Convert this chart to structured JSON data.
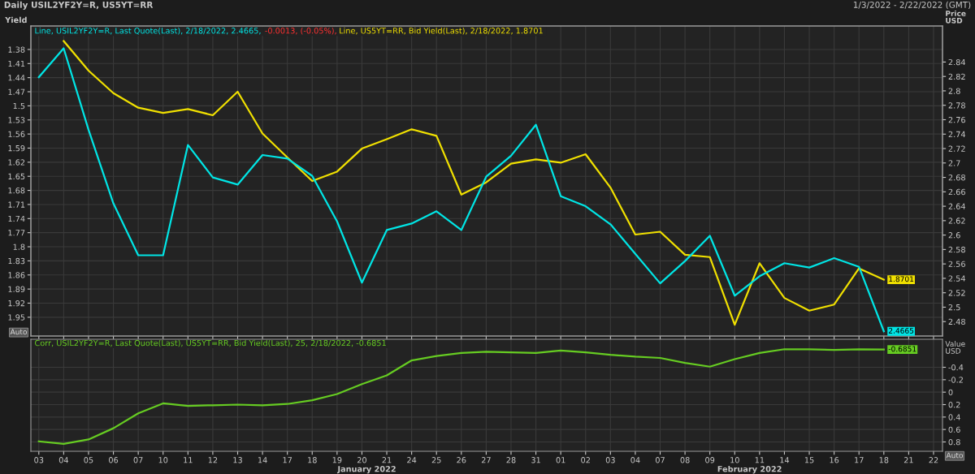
{
  "chart_data": [
    {
      "type": "line",
      "title": "Daily USIL2YF2Y=R, US5YT=RR",
      "subtitle": "1/3/2022 - 2/22/2022 (GMT)",
      "ylabel": "Yield",
      "y2label": "Price USD",
      "categories": [
        "03",
        "04",
        "05",
        "06",
        "07",
        "10",
        "11",
        "12",
        "13",
        "14",
        "17",
        "18",
        "19",
        "20",
        "21",
        "24",
        "25",
        "26",
        "27",
        "28",
        "31",
        "01",
        "02",
        "03",
        "04",
        "07",
        "08",
        "09",
        "10",
        "11",
        "14",
        "15",
        "16",
        "17",
        "18",
        "21",
        "22"
      ],
      "ylim": [
        1.99,
        1.33
      ],
      "yticks": [
        1.38,
        1.41,
        1.44,
        1.47,
        1.5,
        1.53,
        1.56,
        1.59,
        1.62,
        1.65,
        1.68,
        1.71,
        1.74,
        1.77,
        1.8,
        1.83,
        1.86,
        1.89,
        1.92,
        1.95
      ],
      "y2lim": [
        2.46,
        2.89
      ],
      "y2ticks": [
        2.48,
        2.5,
        2.52,
        2.54,
        2.56,
        2.58,
        2.6,
        2.62,
        2.64,
        2.66,
        2.68,
        2.7,
        2.72,
        2.74,
        2.76,
        2.78,
        2.8,
        2.82,
        2.84
      ],
      "grid": true,
      "legend": "top left",
      "tick_labels": "y",
      "annotations": [
        "-0.0013, (-0.05%),",
        "Auto"
      ],
      "series": [
        {
          "name": "Line, USIL2YF2Y=R, Last Quote(Last), 2/18/2022, 2.4665,",
          "color": "#00e5e5",
          "axis": "y2",
          "values": [
            2.819,
            2.859,
            2.746,
            2.644,
            2.572,
            2.572,
            2.725,
            2.68,
            2.67,
            2.711,
            2.706,
            2.682,
            2.619,
            2.534,
            2.607,
            2.616,
            2.633,
            2.607,
            2.681,
            2.71,
            2.753,
            2.654,
            2.64,
            2.615,
            2.574,
            2.533,
            2.564,
            2.599,
            2.516,
            2.543,
            2.561,
            2.555,
            2.568,
            2.556,
            2.4665,
            null,
            null
          ],
          "value_labels": [
            null,
            null,
            null,
            null,
            null,
            null,
            null,
            null,
            null,
            null,
            null,
            null,
            null,
            null,
            null,
            null,
            null,
            null,
            null,
            null,
            null,
            null,
            null,
            null,
            null,
            null,
            null,
            null,
            null,
            null,
            null,
            null,
            null,
            null,
            "2.4665",
            null,
            null
          ]
        },
        {
          "name": "Line, US5YT=RR, Bid Yield(Last), 2/18/2022, 1.8701",
          "color": "#f0e000",
          "values": [
            null,
            1.362,
            1.425,
            1.473,
            1.504,
            1.515,
            1.507,
            1.52,
            1.47,
            1.559,
            1.61,
            1.66,
            1.64,
            1.591,
            1.571,
            1.55,
            1.564,
            1.689,
            1.663,
            1.623,
            1.614,
            1.621,
            1.603,
            1.674,
            1.774,
            1.768,
            1.817,
            1.822,
            1.966,
            1.835,
            1.909,
            1.936,
            1.923,
            1.846,
            1.8701,
            null,
            null
          ],
          "value_labels": [
            null,
            null,
            null,
            null,
            null,
            null,
            null,
            null,
            null,
            null,
            null,
            null,
            null,
            null,
            null,
            null,
            null,
            null,
            null,
            null,
            null,
            null,
            null,
            null,
            null,
            null,
            null,
            null,
            null,
            null,
            null,
            null,
            null,
            null,
            "1.8701",
            null,
            null
          ]
        }
      ]
    },
    {
      "type": "line",
      "ylabel": "Value USD",
      "categories": [
        "03",
        "04",
        "05",
        "06",
        "07",
        "10",
        "11",
        "12",
        "13",
        "14",
        "17",
        "18",
        "19",
        "20",
        "21",
        "24",
        "25",
        "26",
        "27",
        "28",
        "31",
        "01",
        "02",
        "03",
        "04",
        "07",
        "08",
        "09",
        "10",
        "11",
        "14",
        "15",
        "16",
        "17",
        "18",
        "21",
        "22"
      ],
      "ylim": [
        0.95,
        -0.85
      ],
      "yticks": [
        -0.4,
        -0.2,
        0,
        0.2,
        0.4,
        0.6,
        0.8
      ],
      "grid": true,
      "legend": "top left",
      "annotations": [
        "January 2022",
        "February 2022",
        "Auto"
      ],
      "series": [
        {
          "name": "Corr, USIL2YF2Y=R, Last Quote(Last), US5YT=RR, Bid Yield(Last), 25, 2/18/2022, -0.6851",
          "color": "#66cc22",
          "values": [
            0.79,
            0.83,
            0.76,
            0.58,
            0.34,
            0.18,
            0.22,
            0.21,
            0.2,
            0.21,
            0.19,
            0.13,
            0.03,
            -0.13,
            -0.27,
            -0.51,
            -0.58,
            -0.63,
            -0.65,
            -0.64,
            -0.63,
            -0.67,
            -0.64,
            -0.6,
            -0.57,
            -0.55,
            -0.47,
            -0.41,
            -0.53,
            -0.63,
            -0.69,
            -0.69,
            -0.68,
            -0.69,
            -0.6851,
            null,
            null
          ],
          "value_labels": [
            null,
            null,
            null,
            null,
            null,
            null,
            null,
            null,
            null,
            null,
            null,
            null,
            null,
            null,
            null,
            null,
            null,
            null,
            null,
            null,
            null,
            null,
            null,
            null,
            null,
            null,
            null,
            null,
            null,
            null,
            null,
            null,
            null,
            null,
            "-0.6851",
            null,
            null
          ]
        }
      ]
    }
  ]
}
